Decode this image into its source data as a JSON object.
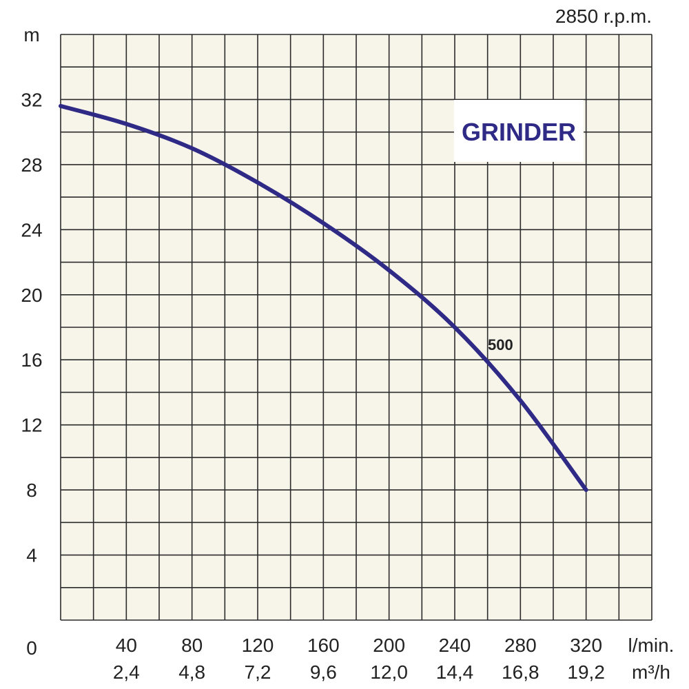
{
  "chart_data": {
    "type": "line",
    "title": "GRINDER",
    "rpm_label": "2850 r.p.m.",
    "ylabel": "m",
    "xlabel_primary_unit": "l/min.",
    "xlabel_secondary_unit": "m³/h",
    "origin_label": "0",
    "xlim": [
      0,
      360
    ],
    "ylim": [
      0,
      36
    ],
    "grid": true,
    "x_ticks": [
      40,
      80,
      120,
      160,
      200,
      240,
      280,
      320
    ],
    "x_tick_labels": [
      "40",
      "80",
      "120",
      "160",
      "200",
      "240",
      "280",
      "320"
    ],
    "x_secondary_tick_labels": [
      "2,4",
      "4,8",
      "7,2",
      "9,6",
      "12,0",
      "14,4",
      "16,8",
      "19,2"
    ],
    "y_ticks": [
      4,
      8,
      12,
      16,
      20,
      24,
      28,
      32
    ],
    "y_tick_labels": [
      "4",
      "8",
      "12",
      "16",
      "20",
      "24",
      "28",
      "32"
    ],
    "colors": {
      "curve": "#2e2a86",
      "grid": "#2a2a2a",
      "plot_bg": "#f7f4ea",
      "title": "#2e2a86"
    },
    "series": [
      {
        "name": "500",
        "x": [
          0,
          40,
          80,
          120,
          160,
          200,
          240,
          280,
          320
        ],
        "y": [
          31.6,
          30.5,
          29.0,
          26.9,
          24.4,
          21.5,
          18.0,
          13.5,
          8.0
        ]
      }
    ]
  }
}
